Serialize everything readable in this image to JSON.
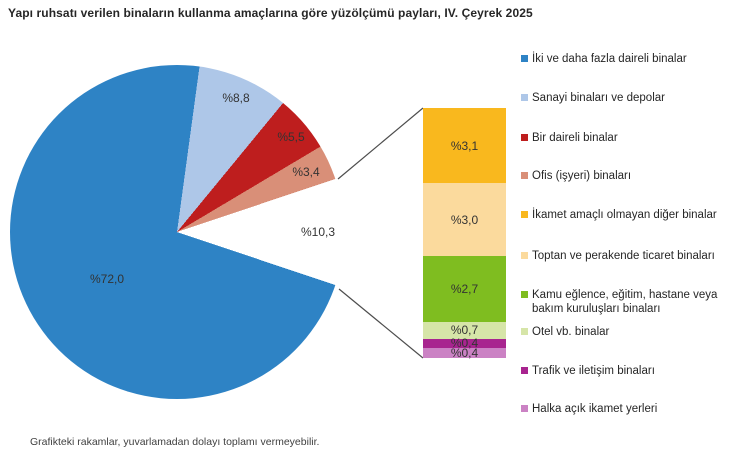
{
  "title": "Yapı ruhsatı verilen binaların kullanma amaçlarına göre yüzölçümü payları, IV. Çeyrek 2025",
  "footnote": "Grafikteki rakamlar, yuvarlamadan dolayı toplamı vermeyebilir.",
  "chart_data": {
    "type": "pie",
    "subtype": "pie-with-breakout-stacked-bar",
    "title": "Yapı ruhsatı verilen binaların kullanma amaçlarına göre yüzölçümü payları, IV. Çeyrek 2025",
    "value_unit": "percent",
    "label_prefix": "%",
    "decimal_separator": ",",
    "gap_color": "#ffffff",
    "slices": [
      {
        "label": "İki ve daha fazla daireli binalar",
        "value": 72.0,
        "display": "%72,0",
        "color": "#2E83C5"
      },
      {
        "label": "Sanayi binaları ve depolar",
        "value": 8.8,
        "display": "%8,8",
        "color": "#AEC7E8"
      },
      {
        "label": "Bir daireli binalar",
        "value": 5.5,
        "display": "%5,5",
        "color": "#BE1E1E"
      },
      {
        "label": "Ofis (işyeri) binaları",
        "value": 3.4,
        "display": "%3,4",
        "color": "#D98F78"
      }
    ],
    "other": {
      "display": "%10,3",
      "value": 10.3,
      "segments": [
        {
          "label": "İkamet amaçlı olmayan diğer binalar",
          "value": 3.1,
          "display": "%3,1",
          "color": "#F9B81E"
        },
        {
          "label": "Toptan ve perakende ticaret binaları",
          "value": 3.0,
          "display": "%3,0",
          "color": "#FBDA9D"
        },
        {
          "label": "Kamu eğlence, eğitim, hastane veya bakım kuruluşları binaları",
          "value": 2.7,
          "display": "%2,7",
          "color": "#7FBD20"
        },
        {
          "label": "Otel vb. binalar",
          "value": 0.7,
          "display": "%0,7",
          "color": "#D6E5A8"
        },
        {
          "label": "Trafik ve iletişim binaları",
          "value": 0.4,
          "display": "%0,4",
          "color": "#A8248F"
        },
        {
          "label": "Halka açık ikamet yerleri",
          "value": 0.4,
          "display": "%0,4",
          "color": "#CB82C4"
        }
      ]
    }
  },
  "legend": {
    "items": [
      {
        "label": "İki ve daha fazla daireli binalar",
        "color": "#2E83C5"
      },
      {
        "label": "Sanayi binaları ve depolar",
        "color": "#AEC7E8"
      },
      {
        "label": "Bir daireli binalar",
        "color": "#BE1E1E"
      },
      {
        "label": "Ofis (işyeri) binaları",
        "color": "#D98F78"
      },
      {
        "label": "İkamet amaçlı olmayan diğer binalar",
        "color": "#F9B81E"
      },
      {
        "label": "Toptan ve perakende ticaret binaları",
        "color": "#FBDA9D"
      },
      {
        "label": "Kamu eğlence, eğitim, hastane veya bakım kuruluşları binaları",
        "color": "#7FBD20"
      },
      {
        "label": "Otel vb. binalar",
        "color": "#D6E5A8"
      },
      {
        "label": "Trafik ve iletişim binaları",
        "color": "#A8248F"
      },
      {
        "label": "Halka açık ikamet yerleri",
        "color": "#CB82C4"
      }
    ]
  }
}
